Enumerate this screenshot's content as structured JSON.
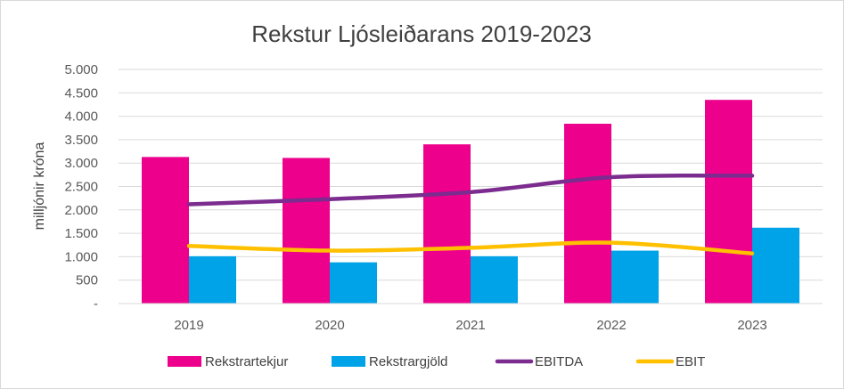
{
  "chart_data": {
    "type": "bar",
    "title": "Rekstur Ljósleiðarans 2019-2023",
    "xlabel": "",
    "ylabel": "milljónir króna",
    "categories": [
      "2019",
      "2020",
      "2021",
      "2022",
      "2023"
    ],
    "ylim": [
      0,
      5000
    ],
    "yticks": [
      0,
      500,
      1000,
      1500,
      2000,
      2500,
      3000,
      3500,
      4000,
      4500,
      5000
    ],
    "ytick_labels": [
      "-",
      "500",
      "1.000",
      "1.500",
      "2.000",
      "2.500",
      "3.000",
      "3.500",
      "4.000",
      "4.500",
      "5.000"
    ],
    "grid": true,
    "legend_position": "bottom",
    "series": [
      {
        "name": "Rekstrartekjur",
        "kind": "bar",
        "color": "#ec008c",
        "values": [
          3130,
          3110,
          3400,
          3840,
          4350
        ]
      },
      {
        "name": "Rekstrargjöld",
        "kind": "bar",
        "color": "#00a2e8",
        "values": [
          1010,
          880,
          1010,
          1130,
          1620
        ]
      },
      {
        "name": "EBITDA",
        "kind": "line",
        "color": "#7b2c8e",
        "values": [
          2120,
          2230,
          2380,
          2700,
          2730
        ]
      },
      {
        "name": "EBIT",
        "kind": "line",
        "color": "#ffc000",
        "values": [
          1230,
          1130,
          1190,
          1300,
          1070
        ]
      }
    ]
  }
}
